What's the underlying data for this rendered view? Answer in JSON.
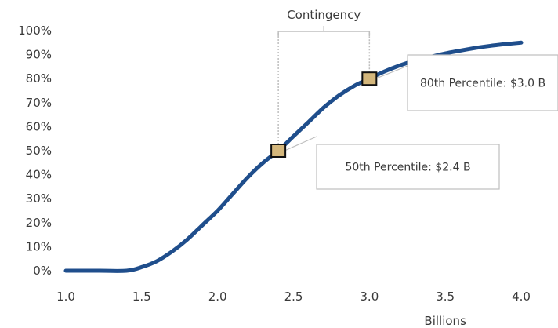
{
  "chart_data": {
    "type": "line",
    "title": "",
    "xlabel": "Billions",
    "ylabel": "",
    "xlim": [
      1.0,
      4.0
    ],
    "ylim": [
      0,
      100
    ],
    "x_ticks": [
      "1.0",
      "1.5",
      "2.0",
      "2.5",
      "3.0",
      "3.5",
      "4.0"
    ],
    "y_ticks": [
      "0%",
      "10%",
      "20%",
      "30%",
      "40%",
      "50%",
      "60%",
      "70%",
      "80%",
      "90%",
      "100%"
    ],
    "grid": false,
    "legend": "none",
    "series": [
      {
        "color": "#1f4e8c",
        "x": [
          1.0,
          1.2,
          1.4,
          1.5,
          1.6,
          1.7,
          1.8,
          1.9,
          2.0,
          2.1,
          2.2,
          2.3,
          2.4,
          2.5,
          2.6,
          2.7,
          2.8,
          2.9,
          3.0,
          3.1,
          3.2,
          3.3,
          3.4,
          3.5,
          3.6,
          3.7,
          3.8,
          3.9,
          4.0
        ],
        "y": [
          0,
          0,
          0,
          1.5,
          4,
          8,
          13,
          19,
          25,
          32,
          39,
          45,
          50,
          56,
          62,
          68,
          73,
          77,
          80,
          83,
          85.5,
          87.5,
          89,
          90.5,
          91.7,
          92.8,
          93.7,
          94.4,
          95
        ]
      }
    ],
    "markers": [
      {
        "x": 2.4,
        "y": 50,
        "label": "50th Percentile:  $2.4 B"
      },
      {
        "x": 3.0,
        "y": 80,
        "label": "80th Percentile: $3.0 B"
      }
    ],
    "bracket_label": "Contingency",
    "colors": {
      "line": "#1f4e8c",
      "marker_fill": "#d4b77c",
      "marker_stroke": "#111111",
      "callout_border": "#bfbfbf"
    }
  }
}
